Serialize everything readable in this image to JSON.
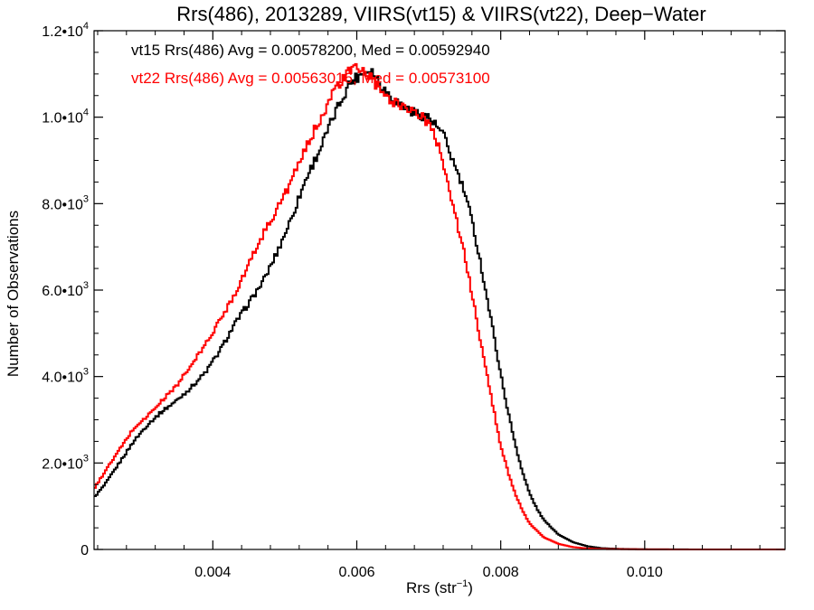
{
  "chart_data": {
    "type": "line",
    "step": true,
    "title": "Rrs(486), 2013289, VIIRS(vt15) & VIIRS(vt22), Deep−Water",
    "xlabel": "Rrs (str",
    "xlabel_sup": "−1",
    "xlabel_tail": ")",
    "ylabel": "Number of Observations",
    "xlim": [
      0.00235,
      0.01195
    ],
    "ylim": [
      0,
      12000
    ],
    "grid": false,
    "x_ticks": [
      {
        "value": 0.004,
        "label": "0.004"
      },
      {
        "value": 0.006,
        "label": "0.006"
      },
      {
        "value": 0.008,
        "label": "0.008"
      },
      {
        "value": 0.01,
        "label": "0.010"
      }
    ],
    "y_ticks": [
      {
        "value": 0,
        "label": "0",
        "sup": ""
      },
      {
        "value": 2000,
        "label": "2.0•10",
        "sup": "3"
      },
      {
        "value": 4000,
        "label": "4.0•10",
        "sup": "3"
      },
      {
        "value": 6000,
        "label": "6.0•10",
        "sup": "3"
      },
      {
        "value": 8000,
        "label": "8.0•10",
        "sup": "3"
      },
      {
        "value": 10000,
        "label": "1.0•10",
        "sup": "4"
      },
      {
        "value": 12000,
        "label": "1.2•10",
        "sup": "4"
      }
    ],
    "annotations": [
      {
        "text": "vt15 Rrs(486) Avg = 0.00578200, Med = 0.00592940",
        "color": "#000000"
      },
      {
        "text": "vt22 Rrs(486) Avg = 0.00563016, Med = 0.00573100",
        "color": "#ff0000"
      }
    ],
    "series": [
      {
        "color": "#000000",
        "x": [
          0.00235,
          0.0025,
          0.0027,
          0.0029,
          0.0031,
          0.0033,
          0.0035,
          0.0037,
          0.0039,
          0.0041,
          0.0043,
          0.0045,
          0.0047,
          0.0049,
          0.0051,
          0.0053,
          0.0055,
          0.0057,
          0.0059,
          0.0061,
          0.0062,
          0.0064,
          0.0066,
          0.0068,
          0.007,
          0.0071,
          0.0072,
          0.0073,
          0.0074,
          0.0075,
          0.0076,
          0.0077,
          0.0078,
          0.0079,
          0.008,
          0.0081,
          0.0082,
          0.0083,
          0.0084,
          0.0085,
          0.0086,
          0.0088,
          0.009,
          0.0092,
          0.0094,
          0.0096,
          0.0098,
          0.01,
          0.0104,
          0.011,
          0.01195
        ],
        "values": [
          1200,
          1500,
          2000,
          2500,
          2900,
          3200,
          3450,
          3750,
          4100,
          4600,
          5200,
          5700,
          6200,
          6900,
          7700,
          8600,
          9300,
          10100,
          10800,
          11050,
          11100,
          10600,
          10300,
          10100,
          10000,
          9800,
          9600,
          9150,
          8700,
          8250,
          7600,
          6800,
          5900,
          5000,
          4050,
          3200,
          2450,
          1800,
          1300,
          950,
          680,
          350,
          170,
          75,
          30,
          15,
          8,
          4,
          2,
          0,
          0
        ]
      },
      {
        "color": "#ff0000",
        "x": [
          0.00235,
          0.0025,
          0.0027,
          0.0029,
          0.0031,
          0.0033,
          0.0035,
          0.0037,
          0.0039,
          0.0041,
          0.0043,
          0.0045,
          0.0047,
          0.0049,
          0.0051,
          0.0053,
          0.0055,
          0.0057,
          0.0059,
          0.006,
          0.0061,
          0.0062,
          0.0064,
          0.0066,
          0.0068,
          0.007,
          0.0071,
          0.0072,
          0.0073,
          0.0074,
          0.0075,
          0.0076,
          0.0077,
          0.0078,
          0.0079,
          0.008,
          0.0081,
          0.0082,
          0.0083,
          0.0084,
          0.0086,
          0.0088,
          0.009,
          0.0092,
          0.0094,
          0.0098,
          0.01,
          0.0104,
          0.011,
          0.01195
        ],
        "values": [
          1400,
          1800,
          2300,
          2800,
          3100,
          3450,
          3800,
          4250,
          4750,
          5300,
          5900,
          6600,
          7300,
          7900,
          8550,
          9300,
          10000,
          10650,
          11050,
          11150,
          11050,
          10900,
          10450,
          10300,
          10150,
          9850,
          9500,
          9000,
          8200,
          7500,
          6800,
          5900,
          5000,
          4100,
          3250,
          2400,
          1800,
          1300,
          900,
          600,
          280,
          130,
          55,
          22,
          10,
          5,
          3,
          1,
          0,
          0
        ]
      }
    ]
  }
}
